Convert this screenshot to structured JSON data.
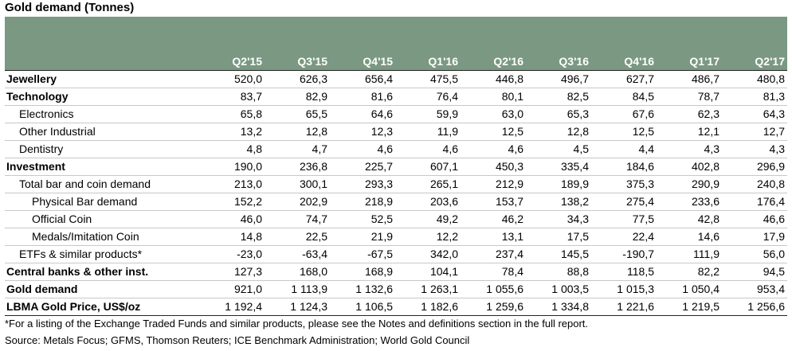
{
  "title": "Gold demand (Tonnes)",
  "columns": [
    "Q2'15",
    "Q3'15",
    "Q4'15",
    "Q1'16",
    "Q2'16",
    "Q3'16",
    "Q4'16",
    "Q1'17",
    "Q2'17"
  ],
  "rows": [
    {
      "label": "Jewellery",
      "style": "major",
      "indent": 0,
      "values": [
        "520,0",
        "626,3",
        "656,4",
        "475,5",
        "446,8",
        "496,7",
        "627,7",
        "486,7",
        "480,8"
      ]
    },
    {
      "label": "Technology",
      "style": "major",
      "indent": 0,
      "values": [
        "83,7",
        "82,9",
        "81,6",
        "76,4",
        "80,1",
        "82,5",
        "84,5",
        "78,7",
        "81,3"
      ]
    },
    {
      "label": "Electronics",
      "style": "normal",
      "indent": 1,
      "values": [
        "65,8",
        "65,5",
        "64,6",
        "59,9",
        "63,0",
        "65,3",
        "67,6",
        "62,3",
        "64,3"
      ]
    },
    {
      "label": "Other Industrial",
      "style": "normal",
      "indent": 1,
      "values": [
        "13,2",
        "12,8",
        "12,3",
        "11,9",
        "12,5",
        "12,8",
        "12,5",
        "12,1",
        "12,7"
      ]
    },
    {
      "label": "Dentistry",
      "style": "normal",
      "indent": 1,
      "values": [
        "4,8",
        "4,7",
        "4,6",
        "4,6",
        "4,6",
        "4,5",
        "4,4",
        "4,3",
        "4,3"
      ]
    },
    {
      "label": "Investment",
      "style": "major",
      "indent": 0,
      "values": [
        "190,0",
        "236,8",
        "225,7",
        "607,1",
        "450,3",
        "335,4",
        "184,6",
        "402,8",
        "296,9"
      ]
    },
    {
      "label": "Total bar and coin demand",
      "style": "normal",
      "indent": 1,
      "values": [
        "213,0",
        "300,1",
        "293,3",
        "265,1",
        "212,9",
        "189,9",
        "375,3",
        "290,9",
        "240,8"
      ]
    },
    {
      "label": "Physical Bar demand",
      "style": "normal",
      "indent": 2,
      "values": [
        "152,2",
        "202,9",
        "218,9",
        "203,6",
        "153,7",
        "138,2",
        "275,4",
        "233,6",
        "176,4"
      ]
    },
    {
      "label": "Official Coin",
      "style": "normal",
      "indent": 2,
      "values": [
        "46,0",
        "74,7",
        "52,5",
        "49,2",
        "46,2",
        "34,3",
        "77,5",
        "42,8",
        "46,6"
      ]
    },
    {
      "label": "Medals/Imitation Coin",
      "style": "normal",
      "indent": 2,
      "values": [
        "14,8",
        "22,5",
        "21,9",
        "12,2",
        "13,1",
        "17,5",
        "22,4",
        "14,6",
        "17,9"
      ]
    },
    {
      "label": "ETFs & similar products*",
      "style": "normal",
      "indent": 1,
      "values": [
        "-23,0",
        "-63,4",
        "-67,5",
        "342,0",
        "237,4",
        "145,5",
        "-190,7",
        "111,9",
        "56,0"
      ]
    },
    {
      "label": "Central banks & other inst.",
      "style": "major",
      "indent": 0,
      "values": [
        "127,3",
        "168,0",
        "168,9",
        "104,1",
        "78,4",
        "88,8",
        "118,5",
        "82,2",
        "94,5"
      ]
    },
    {
      "label": "Gold demand",
      "style": "major",
      "indent": 0,
      "values": [
        "921,0",
        "1 113,9",
        "1 132,6",
        "1 263,1",
        "1 055,6",
        "1 003,5",
        "1 015,3",
        "1 050,4",
        "953,4"
      ]
    },
    {
      "label": "LBMA Gold Price, US$/oz",
      "style": "major-last",
      "indent": 0,
      "values": [
        "1 192,4",
        "1 124,3",
        "1 106,5",
        "1 182,6",
        "1 259,6",
        "1 334,8",
        "1 221,6",
        "1 219,5",
        "1 256,6"
      ]
    }
  ],
  "footnote": "*For a listing of the Exchange Traded Funds and similar products, please see the Notes and definitions section in the full report.",
  "source": "Source: Metals Focus; GFMS, Thomson Reuters; ICE Benchmark Administration; World Gold Council",
  "colors": {
    "header_bg": "#7a9882",
    "header_text": "#ffffff"
  }
}
